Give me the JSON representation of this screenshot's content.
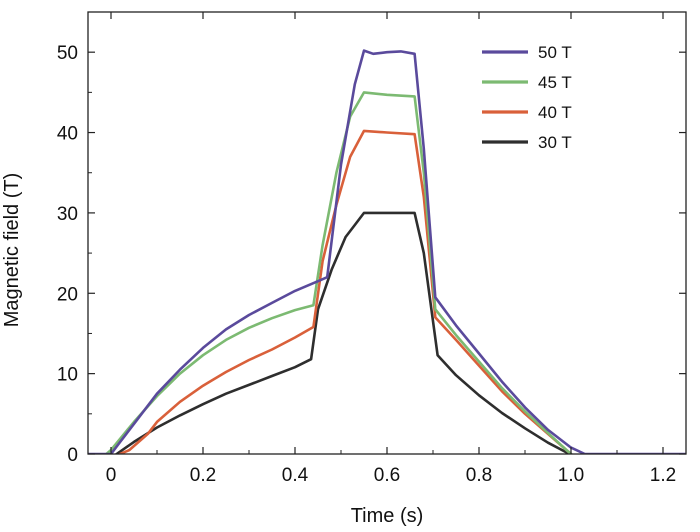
{
  "chart_data": {
    "type": "line",
    "xlabel": "Time (s)",
    "ylabel": "Magnetic field (T)",
    "xlim": [
      -0.05,
      1.25
    ],
    "ylim": [
      0,
      55
    ],
    "x_ticks": [
      0,
      0.2,
      0.4,
      0.6,
      0.8,
      1.0,
      1.2
    ],
    "x_tick_labels": [
      "0",
      "0.2",
      "0.4",
      "0.6",
      "0.8",
      "1.0",
      "1.2"
    ],
    "y_ticks": [
      0,
      10,
      20,
      30,
      40,
      50
    ],
    "y_tick_labels": [
      "0",
      "10",
      "20",
      "30",
      "40",
      "50"
    ],
    "grid": false,
    "legend_position": "top-right",
    "series": [
      {
        "name": "50 T",
        "color": "#5a4a9c",
        "points": [
          [
            -0.05,
            0
          ],
          [
            0.0,
            0
          ],
          [
            0.02,
            1.5
          ],
          [
            0.06,
            4.5
          ],
          [
            0.1,
            7.5
          ],
          [
            0.15,
            10.5
          ],
          [
            0.2,
            13.2
          ],
          [
            0.25,
            15.5
          ],
          [
            0.3,
            17.3
          ],
          [
            0.35,
            18.8
          ],
          [
            0.4,
            20.3
          ],
          [
            0.45,
            21.5
          ],
          [
            0.47,
            22
          ],
          [
            0.5,
            36
          ],
          [
            0.53,
            46
          ],
          [
            0.55,
            50.2
          ],
          [
            0.57,
            49.8
          ],
          [
            0.6,
            50
          ],
          [
            0.63,
            50.1
          ],
          [
            0.66,
            49.8
          ],
          [
            0.68,
            38
          ],
          [
            0.705,
            19.5
          ],
          [
            0.75,
            16
          ],
          [
            0.8,
            12.5
          ],
          [
            0.85,
            9
          ],
          [
            0.9,
            5.8
          ],
          [
            0.95,
            3
          ],
          [
            1.0,
            0.8
          ],
          [
            1.03,
            0
          ],
          [
            1.25,
            0
          ]
        ]
      },
      {
        "name": "45 T",
        "color": "#7cba72",
        "points": [
          [
            -0.01,
            0
          ],
          [
            0.0,
            0.5
          ],
          [
            0.05,
            4
          ],
          [
            0.1,
            7.2
          ],
          [
            0.15,
            10
          ],
          [
            0.2,
            12.3
          ],
          [
            0.25,
            14.2
          ],
          [
            0.3,
            15.7
          ],
          [
            0.35,
            16.9
          ],
          [
            0.4,
            17.9
          ],
          [
            0.44,
            18.5
          ],
          [
            0.46,
            26
          ],
          [
            0.49,
            35
          ],
          [
            0.52,
            42
          ],
          [
            0.55,
            45
          ],
          [
            0.6,
            44.7
          ],
          [
            0.66,
            44.5
          ],
          [
            0.68,
            35
          ],
          [
            0.705,
            18
          ],
          [
            0.75,
            14.8
          ],
          [
            0.8,
            11.5
          ],
          [
            0.85,
            8.2
          ],
          [
            0.9,
            5.3
          ],
          [
            0.95,
            2.6
          ],
          [
            0.99,
            0.5
          ],
          [
            1.0,
            0
          ]
        ]
      },
      {
        "name": "40 T",
        "color": "#d9603a",
        "points": [
          [
            0.02,
            0
          ],
          [
            0.04,
            0.5
          ],
          [
            0.08,
            2.5
          ],
          [
            0.1,
            4
          ],
          [
            0.15,
            6.5
          ],
          [
            0.2,
            8.5
          ],
          [
            0.25,
            10.2
          ],
          [
            0.3,
            11.7
          ],
          [
            0.35,
            13
          ],
          [
            0.4,
            14.5
          ],
          [
            0.44,
            15.8
          ],
          [
            0.46,
            24
          ],
          [
            0.49,
            31
          ],
          [
            0.52,
            37
          ],
          [
            0.55,
            40.2
          ],
          [
            0.6,
            40
          ],
          [
            0.66,
            39.8
          ],
          [
            0.68,
            32
          ],
          [
            0.705,
            17
          ],
          [
            0.75,
            14.2
          ],
          [
            0.8,
            11
          ],
          [
            0.85,
            7.8
          ],
          [
            0.9,
            5
          ],
          [
            0.95,
            2.5
          ],
          [
            0.99,
            0.5
          ],
          [
            1.0,
            0
          ]
        ]
      },
      {
        "name": "30 T",
        "color": "#2e2e2e",
        "points": [
          [
            0.0,
            -0.5
          ],
          [
            0.05,
            1.5
          ],
          [
            0.1,
            3.3
          ],
          [
            0.15,
            4.8
          ],
          [
            0.2,
            6.2
          ],
          [
            0.25,
            7.5
          ],
          [
            0.3,
            8.6
          ],
          [
            0.35,
            9.7
          ],
          [
            0.4,
            10.8
          ],
          [
            0.435,
            11.8
          ],
          [
            0.45,
            18
          ],
          [
            0.48,
            23
          ],
          [
            0.51,
            27
          ],
          [
            0.53,
            28.5
          ],
          [
            0.55,
            30
          ],
          [
            0.6,
            30
          ],
          [
            0.66,
            30
          ],
          [
            0.68,
            25
          ],
          [
            0.71,
            12.3
          ],
          [
            0.75,
            9.8
          ],
          [
            0.8,
            7.3
          ],
          [
            0.85,
            5.1
          ],
          [
            0.9,
            3.2
          ],
          [
            0.95,
            1.4
          ],
          [
            0.99,
            0.2
          ],
          [
            1.0,
            0
          ]
        ]
      }
    ]
  }
}
